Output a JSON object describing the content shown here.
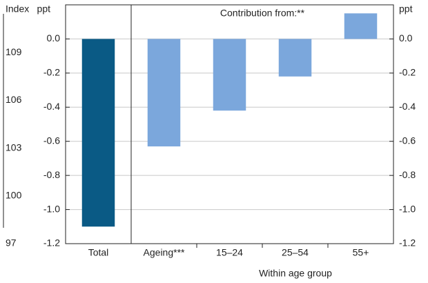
{
  "chart_data": {
    "type": "bar",
    "categories": [
      "Total",
      "Ageing***",
      "15–24",
      "25–54",
      "55+"
    ],
    "values": [
      -1.1,
      -0.63,
      -0.42,
      -0.22,
      0.15
    ],
    "colors": [
      "#0a5a85",
      "#7ba7dc",
      "#7ba7dc",
      "#7ba7dc",
      "#7ba7dc"
    ],
    "ylim": [
      -1.2,
      0.2
    ],
    "yticks": [
      {
        "value": -1.2,
        "label": "-1.2"
      },
      {
        "value": -1.0,
        "label": "-1.0"
      },
      {
        "value": -0.8,
        "label": "-0.8"
      },
      {
        "value": -0.6,
        "label": "-0.6"
      },
      {
        "value": -0.4,
        "label": "-0.4"
      },
      {
        "value": -0.2,
        "label": "-0.2"
      },
      {
        "value": 0,
        "label": "0.0"
      }
    ],
    "y_label": "ppt",
    "y2lim": [
      -1.2,
      0.2
    ],
    "y2ticks": [
      {
        "value": -1.2,
        "label": "-1.2"
      },
      {
        "value": -1.0,
        "label": "-1.0"
      },
      {
        "value": -0.8,
        "label": "-0.8"
      },
      {
        "value": -0.6,
        "label": "-0.6"
      },
      {
        "value": -0.4,
        "label": "-0.4"
      },
      {
        "value": -0.2,
        "label": "-0.2"
      },
      {
        "value": 0,
        "label": "0.0"
      }
    ],
    "y2_label": "ppt",
    "index_axis": {
      "label": "Index",
      "lim": [
        97,
        112
      ],
      "ticks": [
        97,
        100,
        103,
        106,
        109
      ]
    },
    "annotation": "Contribution from:**",
    "group_label": "Within age group",
    "grid": true
  }
}
